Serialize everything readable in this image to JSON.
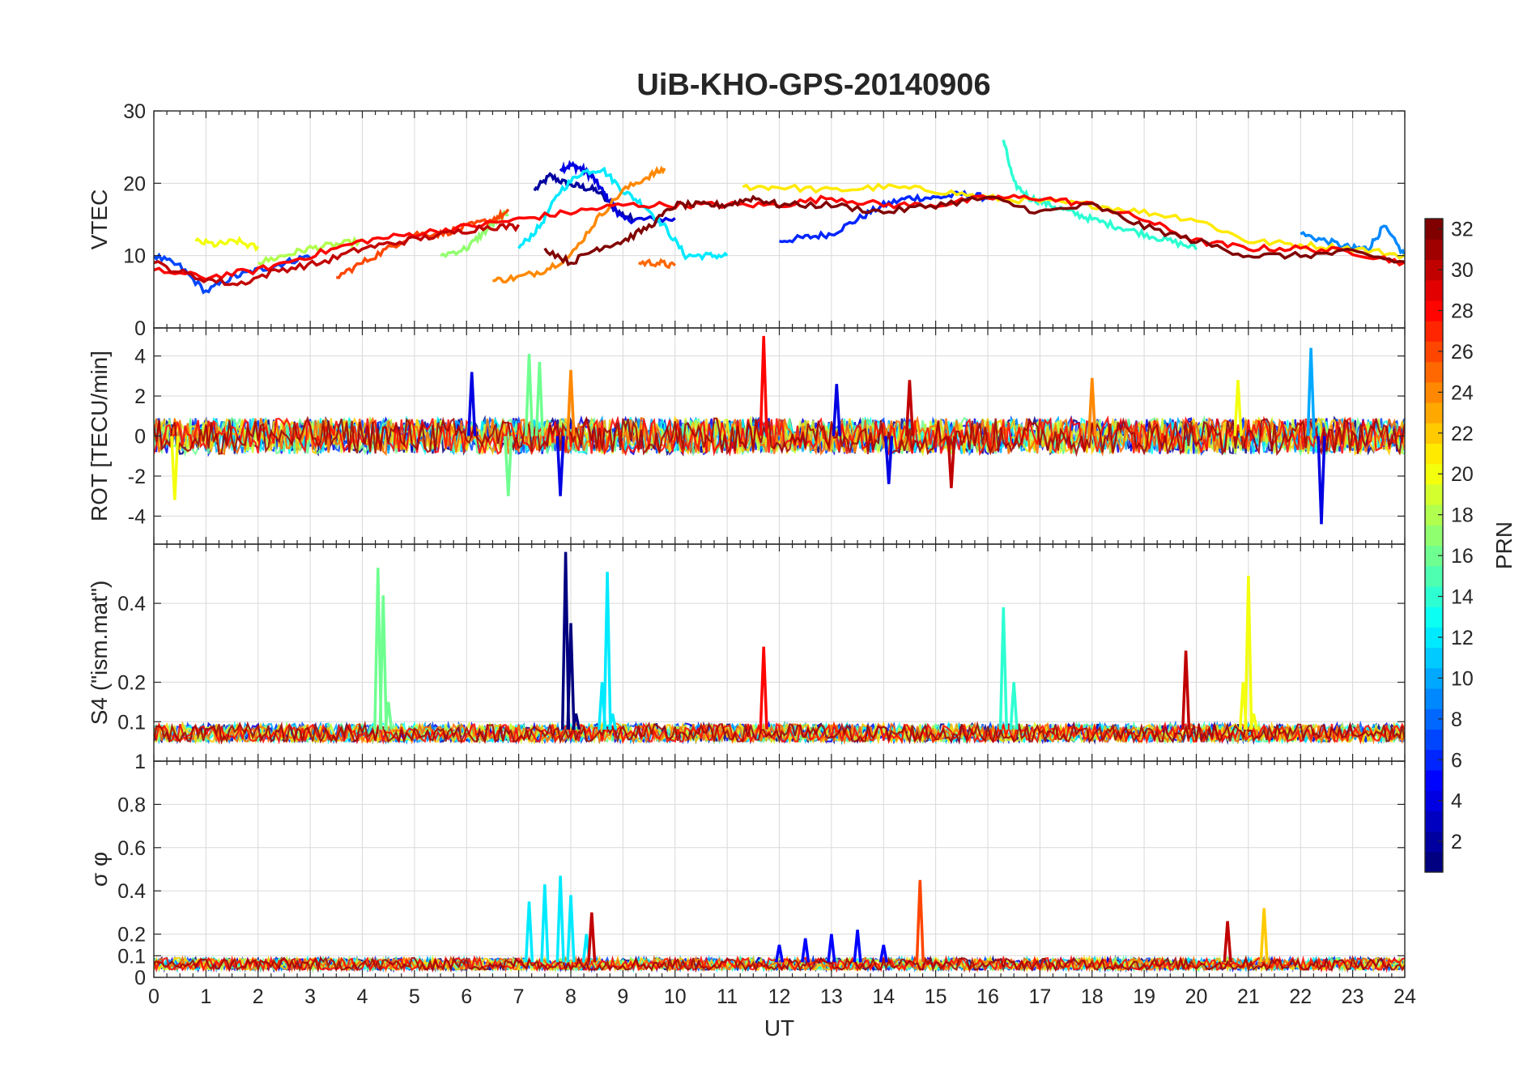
{
  "figure": {
    "title": "UiB-KHO-GPS-20140906",
    "colormap": "jet",
    "colorbar": {
      "label": "PRN",
      "min": 1,
      "max": 32,
      "ticks": [
        "2",
        "4",
        "6",
        "8",
        "10",
        "12",
        "14",
        "16",
        "18",
        "20",
        "22",
        "24",
        "26",
        "28",
        "30",
        "32"
      ]
    }
  },
  "chart_data": [
    {
      "type": "line",
      "panel": "vtec",
      "title": "UiB-KHO-GPS-20140906",
      "ylabel": "VTEC",
      "xlabel": "",
      "xlim": [
        0,
        24
      ],
      "ylim": [
        0,
        30
      ],
      "yticks": [
        "0",
        "10",
        "20",
        "30"
      ],
      "ytick_values": [
        0,
        10,
        20,
        30
      ],
      "grid": true,
      "series": [
        {
          "prn": 2,
          "x": [
            7.3,
            7.6,
            7.9,
            8.2,
            8.5,
            8.9,
            9.2
          ],
          "y": [
            19,
            21,
            20,
            19.5,
            19,
            16,
            15
          ]
        },
        {
          "prn": 4,
          "x": [
            7.8,
            8.0,
            8.2,
            8.4,
            8.6,
            8.8,
            9.0,
            9.4,
            10.0
          ],
          "y": [
            22,
            22.5,
            22,
            21,
            19,
            17,
            15,
            15,
            15
          ]
        },
        {
          "prn": 6,
          "x": [
            12,
            12.5,
            13,
            13.5,
            14,
            14.5,
            15,
            15.5,
            16
          ],
          "y": [
            12,
            12.5,
            13,
            15,
            17,
            18,
            18,
            18.5,
            18
          ]
        },
        {
          "prn": 7,
          "x": [
            0,
            0.5,
            1.0,
            1.5,
            2.0,
            2.5,
            3.0
          ],
          "y": [
            10,
            8.5,
            5,
            7,
            8,
            9,
            10
          ]
        },
        {
          "prn": 9,
          "x": [
            22,
            22.5,
            23,
            23.3,
            23.6,
            24
          ],
          "y": [
            13,
            12,
            11,
            11,
            14,
            10
          ]
        },
        {
          "prn": 12,
          "x": [
            7.0,
            7.4,
            7.8,
            8.2,
            8.6,
            9.0,
            9.4,
            9.8,
            10.2,
            10.6,
            11.0
          ],
          "y": [
            11,
            14,
            19,
            21.5,
            22,
            19,
            17,
            14,
            10,
            10,
            10
          ]
        },
        {
          "prn": 14,
          "x": [
            16.3,
            16.5,
            16.8,
            17.2,
            17.6,
            18.0,
            18.5,
            19.0,
            19.5,
            20.0
          ],
          "y": [
            26,
            20,
            18,
            17,
            16,
            15,
            14,
            13,
            12,
            11
          ]
        },
        {
          "prn": 17,
          "x": [
            5.5,
            6.0,
            6.3,
            6.6,
            6.8
          ],
          "y": [
            10,
            11,
            13,
            15,
            16
          ]
        },
        {
          "prn": 18,
          "x": [
            2,
            2.5,
            3.0,
            3.5,
            4.0
          ],
          "y": [
            9,
            10,
            11,
            11.5,
            12
          ]
        },
        {
          "prn": 20,
          "x": [
            0.8,
            1.2,
            1.6,
            2.0
          ],
          "y": [
            12,
            11.5,
            12,
            11
          ]
        },
        {
          "prn": 21,
          "x": [
            11.3,
            12,
            13,
            14,
            15,
            16,
            17,
            18,
            19,
            20,
            21,
            22,
            23,
            24
          ],
          "y": [
            19.5,
            19.5,
            19,
            19.5,
            19,
            18,
            17.5,
            17,
            16,
            15,
            12,
            11.5,
            11,
            10
          ]
        },
        {
          "prn": 24,
          "x": [
            6.5,
            7.0,
            7.5,
            8.0,
            8.5,
            9.0,
            9.5,
            9.8
          ],
          "y": [
            6.5,
            7,
            8,
            10,
            15,
            19,
            21,
            22
          ]
        },
        {
          "prn": 25,
          "x": [
            9.3,
            9.7,
            10.0
          ],
          "y": [
            9,
            9,
            8.5
          ]
        },
        {
          "prn": 26,
          "x": [
            3.5,
            4.0,
            4.5,
            5.0,
            5.5,
            6.0,
            6.5,
            6.8
          ],
          "y": [
            7,
            9,
            11,
            13,
            13,
            14,
            15,
            16
          ]
        },
        {
          "prn": 28,
          "x": [
            0,
            1,
            2,
            3,
            4,
            5,
            6,
            7,
            8,
            9,
            10,
            11,
            12,
            13,
            14,
            15,
            16,
            17,
            18,
            19,
            20,
            21,
            22,
            23,
            24
          ],
          "y": [
            8,
            7,
            8,
            10,
            12,
            13,
            14,
            15,
            16,
            17,
            17,
            17,
            17,
            18,
            17,
            17,
            18,
            18,
            17,
            15,
            12,
            11,
            11,
            10.5,
            9
          ]
        },
        {
          "prn": 30,
          "x": [
            0,
            0.8,
            1.6,
            2.4,
            3.2,
            4.0,
            4.8,
            5.6,
            6.4,
            7.0
          ],
          "y": [
            9,
            7,
            6,
            8,
            9,
            11,
            12,
            13,
            14,
            14
          ]
        },
        {
          "prn": 32,
          "x": [
            7.5,
            8.0,
            8.5,
            9.0,
            9.5,
            10.0,
            10.5,
            11.0,
            11.5,
            12.0,
            13.0,
            14.0,
            15.0,
            16.0,
            17.0,
            18.0,
            19.0,
            20.0,
            21.0,
            22.0,
            23.0,
            24.0
          ],
          "y": [
            11,
            9,
            11,
            12,
            14,
            17,
            17,
            17,
            18,
            17,
            17,
            16,
            17,
            18,
            16,
            17,
            14,
            12,
            10,
            10,
            10.5,
            9
          ]
        }
      ]
    },
    {
      "type": "line",
      "panel": "rot",
      "ylabel": "ROT [TECU/min]",
      "xlabel": "",
      "xlim": [
        0,
        24
      ],
      "ylim": [
        -5.4,
        5.4
      ],
      "yticks": [
        "-4",
        "-2",
        "0",
        "2",
        "4"
      ],
      "ytick_values": [
        -4,
        -2,
        0,
        2,
        4
      ],
      "grid": true,
      "series": [
        {
          "prn": 4,
          "x": [
            6.1,
            7.8,
            13.1,
            14.1,
            22.4
          ],
          "y": [
            3.2,
            -3.0,
            2.6,
            -2.4,
            -4.4
          ]
        },
        {
          "prn": 10,
          "x": [
            22.2
          ],
          "y": [
            4.4
          ]
        },
        {
          "prn": 16,
          "x": [
            7.2,
            7.4,
            6.8
          ],
          "y": [
            4.1,
            3.7,
            -3.0
          ]
        },
        {
          "prn": 20,
          "x": [
            0.4,
            20.8
          ],
          "y": [
            -3.2,
            2.8
          ]
        },
        {
          "prn": 24,
          "x": [
            8.0,
            18.0
          ],
          "y": [
            3.3,
            2.9
          ]
        },
        {
          "prn": 28,
          "x": [
            11.7
          ],
          "y": [
            5.0
          ]
        },
        {
          "prn": 30,
          "x": [
            14.5,
            15.3
          ],
          "y": [
            2.8,
            -2.6
          ]
        }
      ]
    },
    {
      "type": "line",
      "panel": "s4",
      "ylabel": "S4 (\"ism.mat\")",
      "xlabel": "",
      "xlim": [
        0,
        24
      ],
      "ylim": [
        0,
        0.55
      ],
      "yticks": [
        "0.1",
        "0.2",
        "0.4"
      ],
      "ytick_values": [
        0.1,
        0.2,
        0.4
      ],
      "grid": true,
      "series": [
        {
          "prn": 1,
          "x": [
            7.9,
            8.0,
            8.1
          ],
          "y": [
            0.53,
            0.35,
            0.12
          ]
        },
        {
          "prn": 12,
          "x": [
            8.6,
            8.7,
            8.8
          ],
          "y": [
            0.2,
            0.48,
            0.12
          ]
        },
        {
          "prn": 14,
          "x": [
            16.3,
            16.5
          ],
          "y": [
            0.39,
            0.2
          ]
        },
        {
          "prn": 16,
          "x": [
            4.3,
            4.4,
            4.5
          ],
          "y": [
            0.49,
            0.42,
            0.15
          ]
        },
        {
          "prn": 20,
          "x": [
            20.9,
            21.0,
            21.1
          ],
          "y": [
            0.2,
            0.47,
            0.12
          ]
        },
        {
          "prn": 30,
          "x": [
            19.8
          ],
          "y": [
            0.28
          ]
        },
        {
          "prn": 28,
          "x": [
            11.7
          ],
          "y": [
            0.29
          ]
        }
      ]
    },
    {
      "type": "line",
      "panel": "sigma_phi",
      "ylabel": "σ φ",
      "xlabel": "UT",
      "xlim": [
        0,
        24
      ],
      "ylim": [
        0,
        1
      ],
      "yticks": [
        "0",
        "0.1",
        "0.2",
        "0.4",
        "0.6",
        "0.8",
        "1"
      ],
      "ytick_values": [
        0,
        0.1,
        0.2,
        0.4,
        0.6,
        0.8,
        1
      ],
      "xticks": [
        "0",
        "1",
        "2",
        "3",
        "4",
        "5",
        "6",
        "7",
        "8",
        "9",
        "10",
        "11",
        "12",
        "13",
        "14",
        "15",
        "16",
        "17",
        "18",
        "19",
        "20",
        "21",
        "22",
        "23",
        "24"
      ],
      "xtick_values": [
        0,
        1,
        2,
        3,
        4,
        5,
        6,
        7,
        8,
        9,
        10,
        11,
        12,
        13,
        14,
        15,
        16,
        17,
        18,
        19,
        20,
        21,
        22,
        23,
        24
      ],
      "grid": true,
      "series": [
        {
          "prn": 12,
          "x": [
            7.2,
            7.5,
            7.8,
            8.0,
            8.3
          ],
          "y": [
            0.35,
            0.43,
            0.47,
            0.38,
            0.2
          ]
        },
        {
          "prn": 5,
          "x": [
            12,
            12.5,
            13,
            13.5,
            14
          ],
          "y": [
            0.15,
            0.18,
            0.2,
            0.22,
            0.15
          ]
        },
        {
          "prn": 26,
          "x": [
            14.7
          ],
          "y": [
            0.45
          ]
        },
        {
          "prn": 22,
          "x": [
            21.3
          ],
          "y": [
            0.32
          ]
        },
        {
          "prn": 30,
          "x": [
            8.4,
            20.6
          ],
          "y": [
            0.3,
            0.26
          ]
        }
      ]
    }
  ]
}
